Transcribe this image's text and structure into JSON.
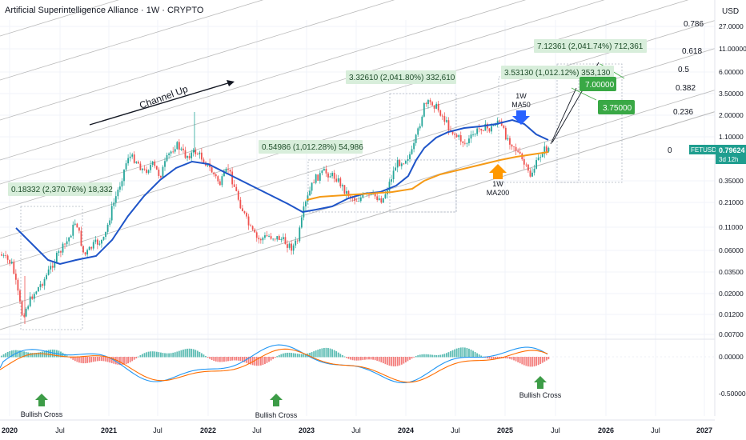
{
  "header": {
    "title": "Artificial Superintelligence Alliance · 1W · CRYPTO",
    "currency": "USD"
  },
  "colors": {
    "bull": "#26a69a",
    "bear": "#ef5350",
    "ma50": "#1e54c8",
    "ma200": "#f59a16",
    "channel": "#9e9e9e",
    "label_bg": "#d8eedb",
    "label_text": "#1f4e2a",
    "target_bg": "#39a845",
    "ticker_bg": "#1f9e8f",
    "arrow_green": "#4caf50"
  },
  "chart_data": {
    "type": "candlestick",
    "scale": "log",
    "x_ticks": [
      "2020",
      "Jul",
      "2021",
      "Jul",
      "2022",
      "Jul",
      "2023",
      "Jul",
      "2024",
      "Jul",
      "2025",
      "Jul",
      "2026",
      "Jul",
      "2027"
    ],
    "price_ticks": [
      "27.0000",
      "11.00000",
      "6.00000",
      "3.50000",
      "2.00000",
      "1.10000",
      "0.60000",
      "0.35000",
      "0.21000",
      "0.11000",
      "0.06000",
      "0.03500",
      "0.02000",
      "0.01200",
      "0.00700"
    ],
    "macd_ticks": [
      "0.00000",
      "-0.50000"
    ],
    "fib_levels": [
      "0.786",
      "0.618",
      "0.5",
      "0.382",
      "0.236",
      "0"
    ],
    "ticker": {
      "symbol": "FETUSD",
      "price": "0.79624",
      "countdown": "3d 12h"
    },
    "price_labels": [
      "0.18332 (2,370.76%) 18,332",
      "0.54986 (1,012.28%) 54,986",
      "3.32610 (2,041.80%) 332,610",
      "3.53130 (1,012.12%) 353,130",
      "7.12361 (2,041.74%) 712,361"
    ],
    "targets": [
      "7.00000",
      "3.75000"
    ],
    "annotations": {
      "channel": "Channel Up",
      "ma50": [
        "1W",
        "MA50"
      ],
      "ma200": [
        "1W",
        "MA200"
      ],
      "bullish_cross": [
        "Bullish Cross",
        "Bullish Cross",
        "Bullish Cross"
      ]
    },
    "series": [
      {
        "name": "1W MA50"
      },
      {
        "name": "1W MA200"
      }
    ]
  }
}
